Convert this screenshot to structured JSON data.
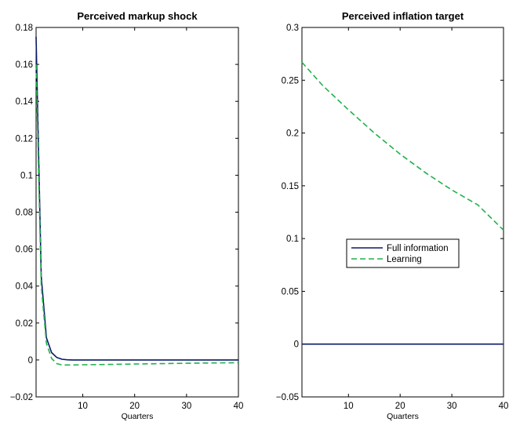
{
  "colors": {
    "full_information": "#0a1a66",
    "learning": "#22b14c"
  },
  "chart_data": [
    {
      "type": "line",
      "title": "Perceived markup shock",
      "xlabel": "Quarters",
      "ylabel": "",
      "xlim": [
        1,
        40
      ],
      "ylim": [
        -0.02,
        0.18
      ],
      "xticks": [
        10,
        20,
        30,
        40
      ],
      "yticks": [
        -0.02,
        0,
        0.02,
        0.04,
        0.06,
        0.08,
        0.1,
        0.12,
        0.14,
        0.16,
        0.18
      ],
      "ytick_labels": [
        "−0.02",
        "0",
        "0.02",
        "0.04",
        "0.06",
        "0.08",
        "0.1",
        "0.12",
        "0.14",
        "0.16",
        "0.18"
      ],
      "xtick_labels": [
        "10",
        "20",
        "30",
        "40"
      ],
      "series": [
        {
          "key": "full_information",
          "style": "solid",
          "x": [
            1,
            2,
            3,
            4,
            5,
            6,
            7,
            8,
            10,
            15,
            20,
            30,
            40
          ],
          "y": [
            0.175,
            0.045,
            0.012,
            0.004,
            0.0013,
            0.0004,
            0.0001,
            0,
            0,
            0,
            0,
            0,
            0
          ]
        },
        {
          "key": "learning",
          "style": "dashed",
          "x": [
            1,
            2,
            3,
            4,
            5,
            6,
            8,
            10,
            15,
            20,
            25,
            30,
            35,
            40
          ],
          "y": [
            0.16,
            0.04,
            0.009,
            0.0008,
            -0.002,
            -0.0027,
            -0.0027,
            -0.0026,
            -0.0024,
            -0.0022,
            -0.002,
            -0.0018,
            -0.0016,
            -0.0015
          ]
        }
      ]
    },
    {
      "type": "line",
      "title": "Perceived inflation target",
      "xlabel": "Quarters",
      "ylabel": "",
      "xlim": [
        1,
        40
      ],
      "ylim": [
        -0.05,
        0.3
      ],
      "xticks": [
        10,
        20,
        30,
        40
      ],
      "yticks": [
        -0.05,
        0,
        0.05,
        0.1,
        0.15,
        0.2,
        0.25,
        0.3
      ],
      "ytick_labels": [
        "−0.05",
        "0",
        "0.05",
        "0.1",
        "0.15",
        "0.2",
        "0.25",
        "0.3"
      ],
      "xtick_labels": [
        "10",
        "20",
        "30",
        "40"
      ],
      "legend": {
        "position": "center",
        "entries": [
          {
            "key": "full_information",
            "label": "Full information",
            "style": "solid"
          },
          {
            "key": "learning",
            "label": "Learning",
            "style": "dashed"
          }
        ]
      },
      "series": [
        {
          "key": "full_information",
          "style": "solid",
          "x": [
            1,
            40
          ],
          "y": [
            0,
            0
          ]
        },
        {
          "key": "learning",
          "style": "dashed",
          "x": [
            1,
            5,
            10,
            15,
            20,
            25,
            30,
            35,
            40
          ],
          "y": [
            0.267,
            0.245,
            0.222,
            0.2,
            0.18,
            0.162,
            0.146,
            0.132,
            0.108
          ]
        }
      ]
    }
  ]
}
